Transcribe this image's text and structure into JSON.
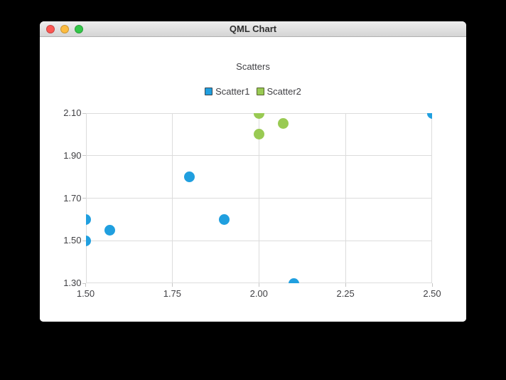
{
  "window": {
    "title": "QML Chart",
    "controls": {
      "close_color": "#fc5753",
      "minimize_color": "#fdbc40",
      "zoom_color": "#33c748"
    }
  },
  "chart_data": {
    "type": "scatter",
    "title": "Scatters",
    "xlabel": "",
    "ylabel": "",
    "xlim": [
      1.5,
      2.5
    ],
    "ylim": [
      1.3,
      2.1
    ],
    "x_ticks": [
      "1.50",
      "1.75",
      "2.00",
      "2.25",
      "2.50"
    ],
    "y_ticks": [
      "2.10",
      "1.90",
      "1.70",
      "1.50",
      "1.30"
    ],
    "grid": true,
    "legend_position": "top",
    "marker_size": 15,
    "series": [
      {
        "name": "Scatter1",
        "color": "#209fdf",
        "border_color": "#36454f",
        "points": [
          [
            1.5,
            1.5
          ],
          [
            1.5,
            1.6
          ],
          [
            1.57,
            1.55
          ],
          [
            1.8,
            1.8
          ],
          [
            1.9,
            1.6
          ],
          [
            2.1,
            1.3
          ],
          [
            2.5,
            2.1
          ]
        ]
      },
      {
        "name": "Scatter2",
        "color": "#99ca53",
        "border_color": "#55622e",
        "points": [
          [
            2.0,
            2.0
          ],
          [
            2.0,
            2.1
          ],
          [
            2.07,
            2.05
          ]
        ]
      }
    ],
    "colors": {
      "grid": "#dcdcdc",
      "tick": "#c6c6c6",
      "label": "#404044"
    }
  }
}
